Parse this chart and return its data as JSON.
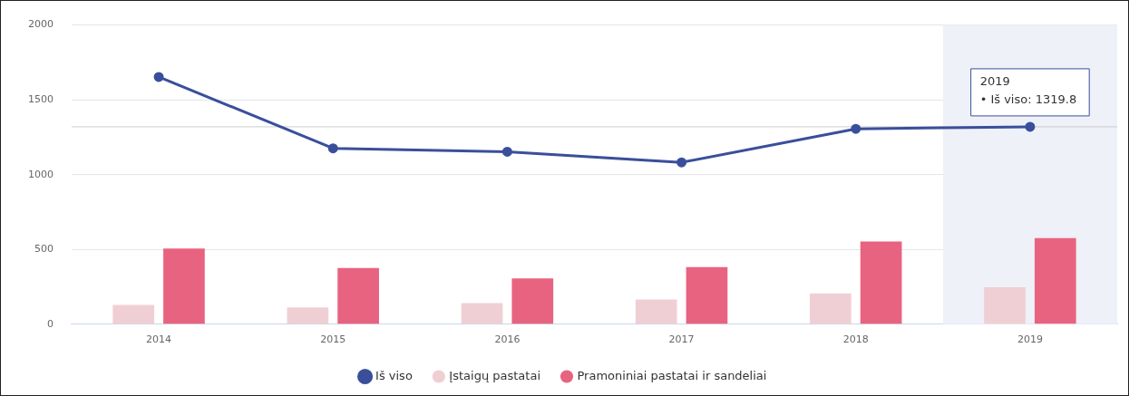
{
  "chart_data": {
    "type": "bar",
    "categories": [
      "2014",
      "2015",
      "2016",
      "2017",
      "2018",
      "2019"
    ],
    "series": [
      {
        "name": "Iš viso",
        "type": "line",
        "color": "#3a4f9b",
        "values": [
          1653,
          1176,
          1153,
          1082,
          1306,
          1319.8
        ]
      },
      {
        "name": "Įstaigų pastatai",
        "color": "#f0cfd4",
        "values": [
          129,
          112,
          141,
          165,
          206,
          247
        ]
      },
      {
        "name": "Pramoniniai pastatai ir sandeliai",
        "color": "#e8637f",
        "values": [
          506,
          376,
          306,
          382,
          553,
          576
        ]
      }
    ],
    "ylim": [
      0,
      2000
    ],
    "yticks": [
      0,
      500,
      1000,
      1500,
      2000
    ],
    "grid": "y",
    "legend": "bottom",
    "marker": "circle",
    "bands": [
      {
        "axis": "x",
        "from": "2019",
        "to": "2019",
        "color": "#eef1f8"
      }
    ],
    "ref_lines": [
      {
        "axis": "y",
        "value": 1319.8,
        "color": "#cccccc"
      }
    ],
    "annotations": [
      {
        "text": "2019\n• Iš viso: 1319.8",
        "x": "2019",
        "y": 1319.8
      }
    ]
  }
}
